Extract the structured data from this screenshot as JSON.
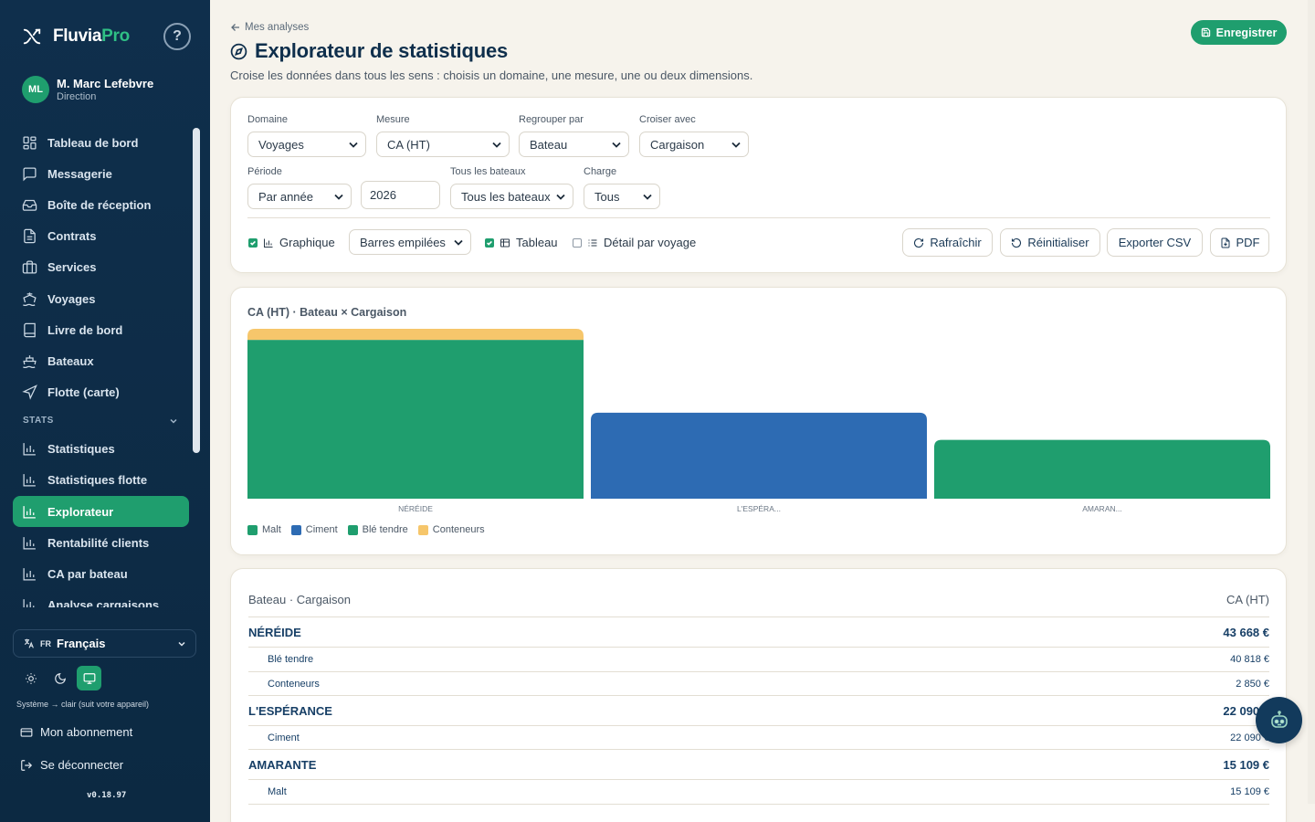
{
  "brand": {
    "name_main": "Fluvia",
    "name_accent": "Pro",
    "help": "?"
  },
  "user": {
    "initials": "ML",
    "name": "M. Marc Lefebvre",
    "role": "Direction"
  },
  "nav": {
    "items": [
      {
        "label": "Tableau de bord",
        "icon": "dashboard-icon"
      },
      {
        "label": "Messagerie",
        "icon": "chat-icon"
      },
      {
        "label": "Boîte de réception",
        "icon": "inbox-icon"
      },
      {
        "label": "Contrats",
        "icon": "document-icon"
      },
      {
        "label": "Services",
        "icon": "briefcase-icon"
      },
      {
        "label": "Voyages",
        "icon": "ship-icon"
      },
      {
        "label": "Livre de bord",
        "icon": "book-icon"
      },
      {
        "label": "Bateaux",
        "icon": "boat-icon"
      },
      {
        "label": "Flotte (carte)",
        "icon": "navigation-icon"
      }
    ],
    "section_label": "STATS",
    "stats_items": [
      {
        "label": "Statistiques"
      },
      {
        "label": "Statistiques flotte"
      },
      {
        "label": "Explorateur",
        "active": true
      },
      {
        "label": "Rentabilité clients"
      },
      {
        "label": "CA par bateau"
      },
      {
        "label": "Analyse cargaisons"
      }
    ]
  },
  "language": {
    "code": "FR",
    "label": "Français"
  },
  "theme": {
    "note": "Système → clair (suit votre appareil)",
    "options": [
      "sun-icon",
      "moon-icon",
      "monitor-icon"
    ],
    "active": "monitor-icon"
  },
  "footer": {
    "subscription": "Mon abonnement",
    "logout": "Se déconnecter",
    "version": "v0.18.97"
  },
  "header": {
    "back": "Mes analyses",
    "title": "Explorateur de statistiques",
    "subtitle": "Croise les données dans tous les sens : choisis un domaine, une mesure, une ou deux dimensions.",
    "save": "Enregistrer"
  },
  "filters": {
    "domain": {
      "label": "Domaine",
      "value": "Voyages"
    },
    "measure": {
      "label": "Mesure",
      "value": "CA (HT)"
    },
    "group_by": {
      "label": "Regrouper par",
      "value": "Bateau"
    },
    "cross_with": {
      "label": "Croiser avec",
      "value": "Cargaison"
    },
    "period": {
      "label": "Période",
      "value": "Par année"
    },
    "year": {
      "value": "2026"
    },
    "boats": {
      "label": "Tous les bateaux",
      "value": "Tous les bateaux"
    },
    "charge": {
      "label": "Charge",
      "value": "Tous"
    }
  },
  "options": {
    "chart": {
      "label": "Graphique",
      "checked": true
    },
    "chart_type": "Barres empilées",
    "table": {
      "label": "Tableau",
      "checked": true
    },
    "detail": {
      "label": "Détail par voyage",
      "checked": false
    }
  },
  "actions": {
    "refresh": "Rafraîchir",
    "reset": "Réinitialiser",
    "export_csv": "Exporter CSV",
    "pdf": "PDF"
  },
  "chart_data": {
    "type": "bar",
    "stacked": true,
    "title": "CA (HT) · Bateau × Cargaison",
    "categories": [
      "NÉRÉIDE",
      "L'ESPÉRA...",
      "AMARAN..."
    ],
    "series": [
      {
        "name": "Malt",
        "color": "#1f9e6e",
        "values": [
          0,
          0,
          15109
        ]
      },
      {
        "name": "Ciment",
        "color": "#2d6bb3",
        "values": [
          0,
          22090,
          0
        ]
      },
      {
        "name": "Blé tendre",
        "color": "#1f9e6e",
        "values": [
          40818,
          0,
          0
        ]
      },
      {
        "name": "Conteneurs",
        "color": "#f6c66b",
        "values": [
          2850,
          0,
          0
        ]
      }
    ],
    "ylim": [
      0,
      43668
    ],
    "legend_position": "bottom-left",
    "grid": false
  },
  "table": {
    "header_left": "Bateau · Cargaison",
    "header_right": "CA (HT)",
    "groups": [
      {
        "name": "NÉRÉIDE",
        "total": "43 668 €",
        "rows": [
          {
            "name": "Blé tendre",
            "value": "40 818 €"
          },
          {
            "name": "Conteneurs",
            "value": "2 850 €"
          }
        ]
      },
      {
        "name": "L'ESPÉRANCE",
        "total": "22 090 €",
        "rows": [
          {
            "name": "Ciment",
            "value": "22 090 €"
          }
        ]
      },
      {
        "name": "AMARANTE",
        "total": "15 109 €",
        "rows": [
          {
            "name": "Malt",
            "value": "15 109 €"
          }
        ]
      }
    ]
  }
}
